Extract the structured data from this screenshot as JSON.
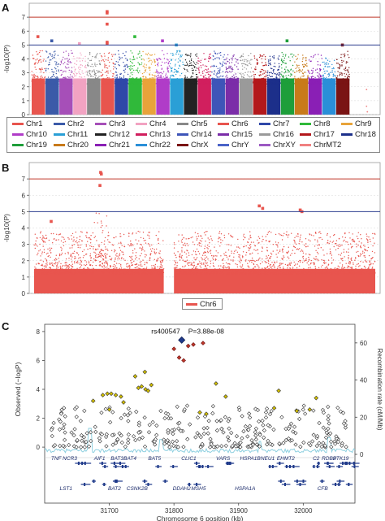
{
  "panels": {
    "a": "A",
    "b": "B",
    "c": "C"
  },
  "colors": {
    "threshold_red": "#c0392b",
    "threshold_blue": "#2c3e8f",
    "chr6": "#e8554e",
    "recomb_line": "#8fd0e0",
    "gene_blue": "#1f3a8a",
    "lead_snp": "#1f3a8a",
    "ld_high": "#c0392b",
    "ld_mid": "#d4c000",
    "ld_low": "#ffffff"
  },
  "chart_data": [
    {
      "type": "scatter",
      "title": "",
      "ylabel": "-log10(P)",
      "xlabel": "",
      "ylim": [
        0,
        8
      ],
      "yticks": [
        "0",
        "1",
        "2",
        "3",
        "4",
        "5",
        "6",
        "7"
      ],
      "thresholds": [
        7,
        5
      ],
      "legend": [
        {
          "name": "Chr1",
          "color": "#e8554e"
        },
        {
          "name": "Chr2",
          "color": "#3b5aa8"
        },
        {
          "name": "Chr3",
          "color": "#a64fb8"
        },
        {
          "name": "Chr4",
          "color": "#f2a3c2"
        },
        {
          "name": "Chr5",
          "color": "#888888"
        },
        {
          "name": "Chr6",
          "color": "#e8554e"
        },
        {
          "name": "Chr7",
          "color": "#2f48a8"
        },
        {
          "name": "Chr8",
          "color": "#30b93a"
        },
        {
          "name": "Chr9",
          "color": "#e8a33a"
        },
        {
          "name": "Chr10",
          "color": "#b03cc8"
        },
        {
          "name": "Chr11",
          "color": "#2a9fd6"
        },
        {
          "name": "Chr12",
          "color": "#222222"
        },
        {
          "name": "Chr13",
          "color": "#d11f5e"
        },
        {
          "name": "Chr14",
          "color": "#3e55b8"
        },
        {
          "name": "Chr15",
          "color": "#7b2da8"
        },
        {
          "name": "Chr16",
          "color": "#9a9a9a"
        },
        {
          "name": "Chr17",
          "color": "#b3181b"
        },
        {
          "name": "Chr18",
          "color": "#1c2f8a"
        },
        {
          "name": "Chr19",
          "color": "#1e9e3a"
        },
        {
          "name": "Chr20",
          "color": "#c87a1a"
        },
        {
          "name": "Chr21",
          "color": "#8a1fb5"
        },
        {
          "name": "Chr22",
          "color": "#2a8fd8"
        },
        {
          "name": "ChrX",
          "color": "#7a1414"
        },
        {
          "name": "ChrY",
          "color": "#4a63c8"
        },
        {
          "name": "ChrXY",
          "color": "#9b59c2"
        },
        {
          "name": "ChrMT2",
          "color": "#f08080"
        }
      ],
      "chromosomes": [
        {
          "name": "Chr1",
          "color": "#e8554e",
          "peak": 5.6,
          "hits": [
            5.6
          ]
        },
        {
          "name": "Chr2",
          "color": "#3b5aa8",
          "peak": 5.3,
          "hits": [
            5.3
          ]
        },
        {
          "name": "Chr3",
          "color": "#a64fb8",
          "peak": 4.6,
          "hits": []
        },
        {
          "name": "Chr4",
          "color": "#f2a3c2",
          "peak": 5.1,
          "hits": [
            5.1
          ]
        },
        {
          "name": "Chr5",
          "color": "#888888",
          "peak": 4.3,
          "hits": []
        },
        {
          "name": "Chr6",
          "color": "#e8554e",
          "peak": 7.4,
          "hits": [
            7.4,
            7.3,
            6.5,
            5.2,
            5.1
          ]
        },
        {
          "name": "Chr7",
          "color": "#2f48a8",
          "peak": 4.4,
          "hits": []
        },
        {
          "name": "Chr8",
          "color": "#30b93a",
          "peak": 5.6,
          "hits": [
            5.6
          ]
        },
        {
          "name": "Chr9",
          "color": "#e8a33a",
          "peak": 4.3,
          "hits": []
        },
        {
          "name": "Chr10",
          "color": "#b03cc8",
          "peak": 5.3,
          "hits": [
            5.3
          ]
        },
        {
          "name": "Chr11",
          "color": "#2a9fd6",
          "peak": 5.0,
          "hits": [
            5.0
          ]
        },
        {
          "name": "Chr12",
          "color": "#222222",
          "peak": 4.1,
          "hits": []
        },
        {
          "name": "Chr13",
          "color": "#d11f5e",
          "peak": 4.2,
          "hits": []
        },
        {
          "name": "Chr14",
          "color": "#3e55b8",
          "peak": 4.6,
          "hits": []
        },
        {
          "name": "Chr15",
          "color": "#7b2da8",
          "peak": 4.0,
          "hits": []
        },
        {
          "name": "Chr16",
          "color": "#9a9a9a",
          "peak": 4.1,
          "hits": []
        },
        {
          "name": "Chr17",
          "color": "#b3181b",
          "peak": 4.0,
          "hits": []
        },
        {
          "name": "Chr18",
          "color": "#1c2f8a",
          "peak": 3.9,
          "hits": []
        },
        {
          "name": "Chr19",
          "color": "#1e9e3a",
          "peak": 5.3,
          "hits": [
            5.3
          ]
        },
        {
          "name": "Chr20",
          "color": "#c87a1a",
          "peak": 4.0,
          "hits": []
        },
        {
          "name": "Chr21",
          "color": "#8a1fb5",
          "peak": 4.0,
          "hits": []
        },
        {
          "name": "Chr22",
          "color": "#2a8fd8",
          "peak": 3.8,
          "hits": []
        },
        {
          "name": "ChrX",
          "color": "#7a1414",
          "peak": 5.0,
          "hits": [
            5.0
          ]
        },
        {
          "name": "ChrY",
          "color": "#4a63c8",
          "peak": 0.0,
          "hits": []
        },
        {
          "name": "ChrXY",
          "color": "#9b59c2",
          "peak": 0.0,
          "hits": []
        },
        {
          "name": "ChrMT2",
          "color": "#f08080",
          "peak": 1.8,
          "hits": []
        }
      ]
    },
    {
      "type": "scatter",
      "title": "",
      "ylabel": "-log10(P)",
      "xlabel": "",
      "ylim": [
        0,
        8
      ],
      "yticks": [
        "0",
        "1",
        "2",
        "3",
        "4",
        "5",
        "6",
        "7"
      ],
      "thresholds": [
        7,
        5
      ],
      "legend": [
        {
          "name": "Chr6",
          "color": "#e8554e"
        }
      ],
      "gap": [
        0.38,
        0.41
      ],
      "hits": [
        {
          "x": 0.195,
          "y": 7.4
        },
        {
          "x": 0.197,
          "y": 7.3
        },
        {
          "x": 0.193,
          "y": 6.6
        },
        {
          "x": 0.05,
          "y": 4.4
        },
        {
          "x": 0.66,
          "y": 5.35
        },
        {
          "x": 0.67,
          "y": 5.2
        },
        {
          "x": 0.78,
          "y": 5.1
        },
        {
          "x": 0.785,
          "y": 5.0
        }
      ]
    },
    {
      "type": "scatter",
      "title": "",
      "xlabel": "Chromosome 6 position (kb)",
      "ylabel": "Observed (−logP)",
      "ylabel_right": "Recombination rate (cM/Mb)",
      "xlim": [
        31600,
        32080
      ],
      "xticks": [
        "31700",
        "31800",
        "31900",
        "32000"
      ],
      "ylim": [
        -0.5,
        8.5
      ],
      "yticks": [
        "0",
        "2",
        "4",
        "6",
        "8"
      ],
      "ylim_right": [
        0,
        70
      ],
      "yticks_right": [
        "0",
        "20",
        "40",
        "60"
      ],
      "lead_snp": {
        "label": "rs400547",
        "pvalue_label": "P=3.88e-08",
        "x": 31812,
        "y": 7.41
      },
      "high_ld": [
        {
          "x": 31800,
          "y": 6.8
        },
        {
          "x": 31822,
          "y": 7.0
        },
        {
          "x": 31830,
          "y": 7.1
        },
        {
          "x": 31845,
          "y": 7.2
        },
        {
          "x": 31808,
          "y": 6.2
        },
        {
          "x": 31815,
          "y": 6.0
        }
      ],
      "mid_ld": [
        {
          "x": 31675,
          "y": 3.2
        },
        {
          "x": 31690,
          "y": 3.6
        },
        {
          "x": 31697,
          "y": 3.7
        },
        {
          "x": 31703,
          "y": 3.7
        },
        {
          "x": 31710,
          "y": 3.6
        },
        {
          "x": 31718,
          "y": 3.5
        },
        {
          "x": 31745,
          "y": 4.1
        },
        {
          "x": 31750,
          "y": 4.2
        },
        {
          "x": 31756,
          "y": 4.0
        },
        {
          "x": 31760,
          "y": 3.9
        },
        {
          "x": 31765,
          "y": 4.3
        },
        {
          "x": 31740,
          "y": 4.9
        },
        {
          "x": 31755,
          "y": 5.2
        },
        {
          "x": 31700,
          "y": 2.6
        },
        {
          "x": 31722,
          "y": 3.1
        },
        {
          "x": 31865,
          "y": 4.4
        },
        {
          "x": 31880,
          "y": 3.5
        },
        {
          "x": 31840,
          "y": 2.4
        },
        {
          "x": 31850,
          "y": 2.3
        },
        {
          "x": 31990,
          "y": 2.5
        },
        {
          "x": 32010,
          "y": 2.6
        },
        {
          "x": 32020,
          "y": 3.4
        },
        {
          "x": 31962,
          "y": 3.9
        },
        {
          "x": 31955,
          "y": 2.7
        }
      ],
      "genes": [
        {
          "label": "TNF NCR3",
          "row": 0,
          "x": 31630
        },
        {
          "label": "AIF1",
          "row": 0,
          "x": 31685
        },
        {
          "label": "BAT3",
          "row": 0,
          "x": 31712
        },
        {
          "label": "BAT4",
          "row": 0,
          "x": 31732
        },
        {
          "label": "BAT5",
          "row": 0,
          "x": 31770
        },
        {
          "label": "CLIC1",
          "row": 0,
          "x": 31823
        },
        {
          "label": "VARS",
          "row": 0,
          "x": 31876
        },
        {
          "label": "HSPA1B",
          "row": 0,
          "x": 31918
        },
        {
          "label": "NEU1",
          "row": 0,
          "x": 31945
        },
        {
          "label": "EHMT2",
          "row": 0,
          "x": 31973
        },
        {
          "label": "C2",
          "row": 0,
          "x": 32020
        },
        {
          "label": "RDBP",
          "row": 0,
          "x": 32040
        },
        {
          "label": "STK19",
          "row": 0,
          "x": 32058
        },
        {
          "label": "LST1",
          "row": 1,
          "x": 31633
        },
        {
          "label": "BAT2",
          "row": 1,
          "x": 31708
        },
        {
          "label": "CSNK2B",
          "row": 1,
          "x": 31743
        },
        {
          "label": "DDAH2",
          "row": 1,
          "x": 31812
        },
        {
          "label": "MSH5",
          "row": 1,
          "x": 31838
        },
        {
          "label": "HSPA1A",
          "row": 1,
          "x": 31910
        },
        {
          "label": "CFB",
          "row": 1,
          "x": 32030
        }
      ]
    }
  ],
  "legend_b_label": "Chr6"
}
